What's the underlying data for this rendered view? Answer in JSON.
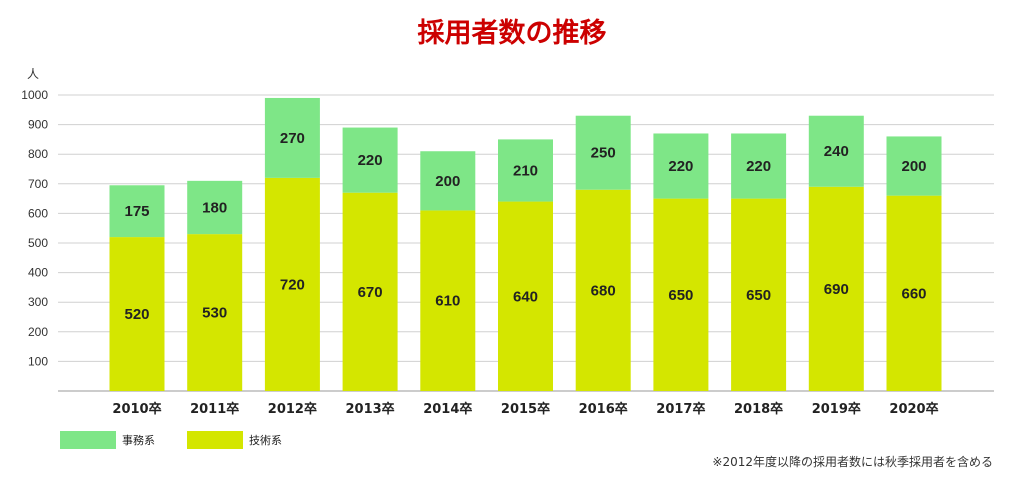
{
  "colors": {
    "title": "#cc0000",
    "jimu": "#7ee687",
    "gijutsu": "#d4e600",
    "grid": "#d0d0d0"
  },
  "chart_data": {
    "type": "bar",
    "stacked": true,
    "title": "採用者数の推移",
    "ylabel": "人",
    "ylim": [
      0,
      1000
    ],
    "yticks": [
      100,
      200,
      300,
      400,
      500,
      600,
      700,
      800,
      900,
      1000
    ],
    "grid": true,
    "categories": [
      "2010卒",
      "2011卒",
      "2012卒",
      "2013卒",
      "2014卒",
      "2015卒",
      "2016卒",
      "2017卒",
      "2018卒",
      "2019卒",
      "2020卒"
    ],
    "series": [
      {
        "name": "技術系",
        "values": [
          520,
          530,
          720,
          670,
          610,
          640,
          680,
          650,
          650,
          690,
          660
        ]
      },
      {
        "name": "事務系",
        "values": [
          175,
          180,
          270,
          220,
          200,
          210,
          250,
          220,
          220,
          240,
          200
        ]
      }
    ],
    "legend_placement": "bottom-left",
    "note": "※2012年度以降の採用者数には秋季採用者を含める"
  }
}
